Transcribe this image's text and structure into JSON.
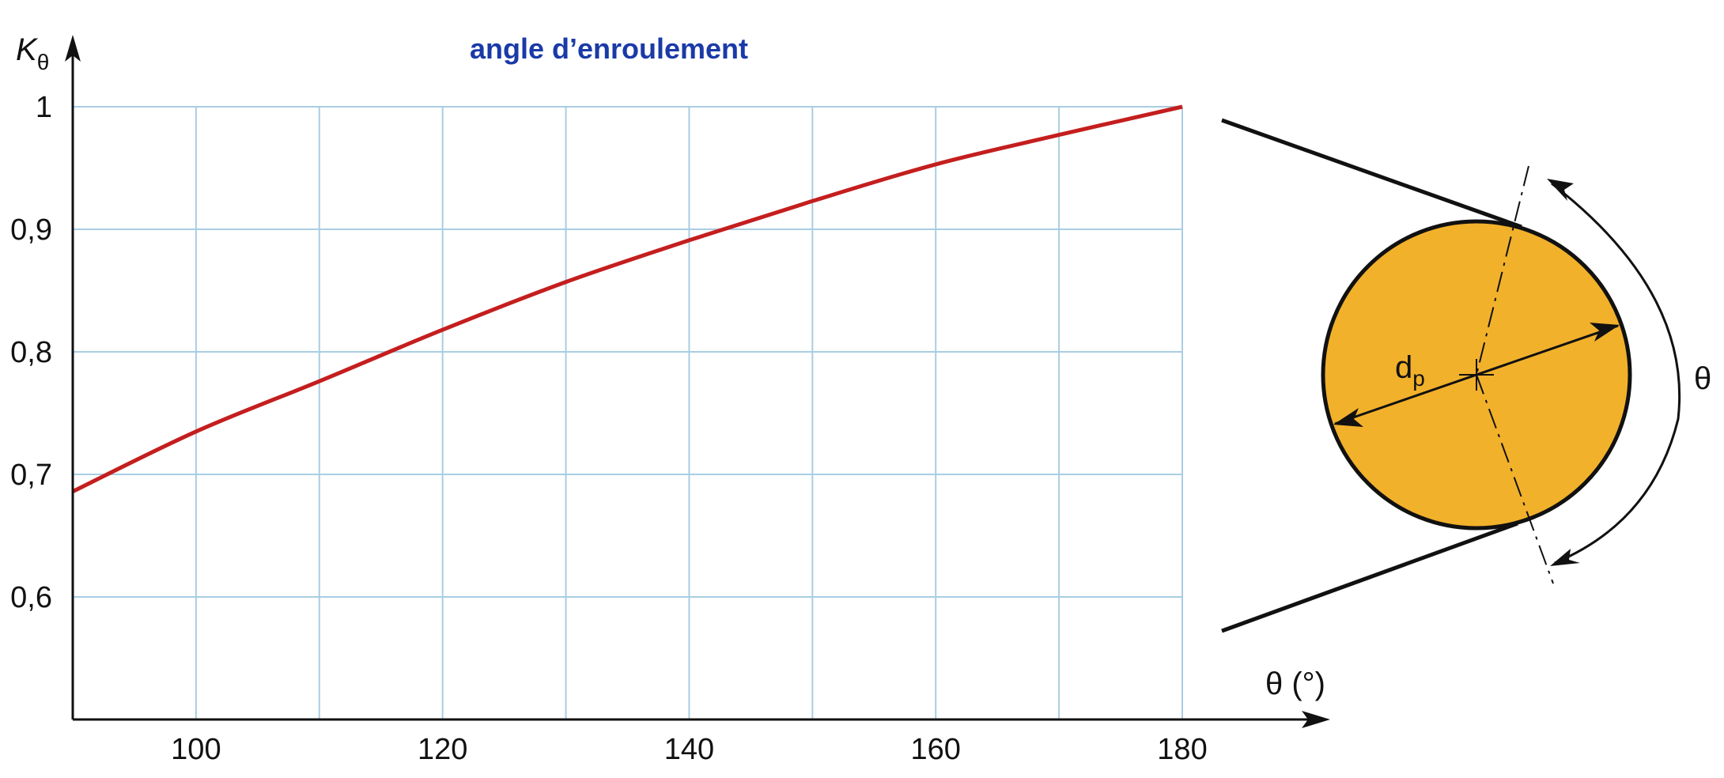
{
  "chart_data": {
    "type": "line",
    "title": "angle d’enroulement",
    "ylabel": {
      "main": "K",
      "sub": "θ"
    },
    "xlabel": "θ (°)",
    "xlim": [
      90,
      180
    ],
    "ylim": [
      0.5,
      1.0
    ],
    "x_ticks": [
      100,
      120,
      140,
      160,
      180
    ],
    "x_tick_labels": [
      "100",
      "120",
      "140",
      "160",
      "180"
    ],
    "x_gridlines": [
      90,
      100,
      110,
      120,
      130,
      140,
      150,
      160,
      170,
      180
    ],
    "y_ticks": [
      0.6,
      0.7,
      0.8,
      0.9,
      1.0
    ],
    "y_tick_labels": [
      "0,6",
      "0,7",
      "0,8",
      "0,9",
      "1"
    ],
    "grid": true,
    "series": [
      {
        "color": "#c41e1e",
        "x": [
          90,
          100,
          110,
          120,
          130,
          140,
          150,
          160,
          170,
          180
        ],
        "y": [
          0.686,
          0.735,
          0.776,
          0.818,
          0.857,
          0.891,
          0.923,
          0.953,
          0.977,
          1.0
        ]
      }
    ]
  },
  "diagram": {
    "diameter_label": {
      "main": "d",
      "sub": "p"
    },
    "angle_label": "θ",
    "pulley_color": "#f2b12b"
  },
  "colors": {
    "grid": "#a9cde3",
    "axis": "#111111",
    "title": "#1a3aa8"
  }
}
